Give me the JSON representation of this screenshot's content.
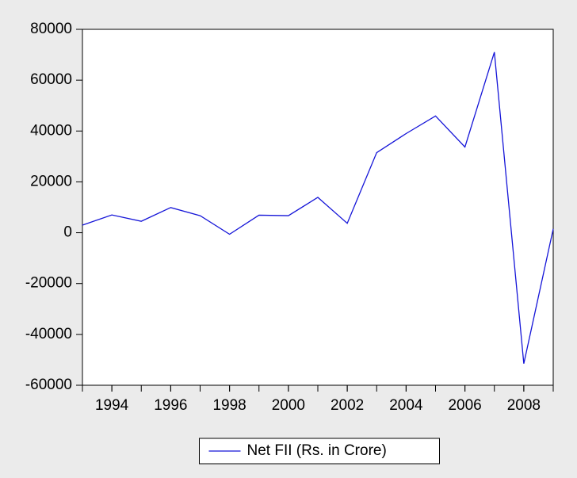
{
  "chart_data": {
    "type": "line",
    "x": [
      1993,
      1994,
      1995,
      1996,
      1997,
      1998,
      1999,
      2000,
      2001,
      2002,
      2003,
      2004,
      2005,
      2006,
      2007,
      2008,
      2009
    ],
    "series": [
      {
        "name": "Net FII (Rs. in Crore)",
        "color": "#1515d8",
        "values": [
          3000,
          7000,
          4500,
          9900,
          6700,
          -600,
          6900,
          6700,
          13900,
          3700,
          31500,
          39000,
          45900,
          33700,
          71000,
          -51500,
          1500
        ]
      }
    ],
    "xlim": [
      1993,
      2009
    ],
    "xticks": [
      1994,
      1996,
      1998,
      2000,
      2002,
      2004,
      2006,
      2008
    ],
    "ylim": [
      -60000,
      80000
    ],
    "yticks": [
      -60000,
      -40000,
      -20000,
      0,
      20000,
      40000,
      60000,
      80000
    ],
    "grid": false,
    "legend": "bottom"
  }
}
